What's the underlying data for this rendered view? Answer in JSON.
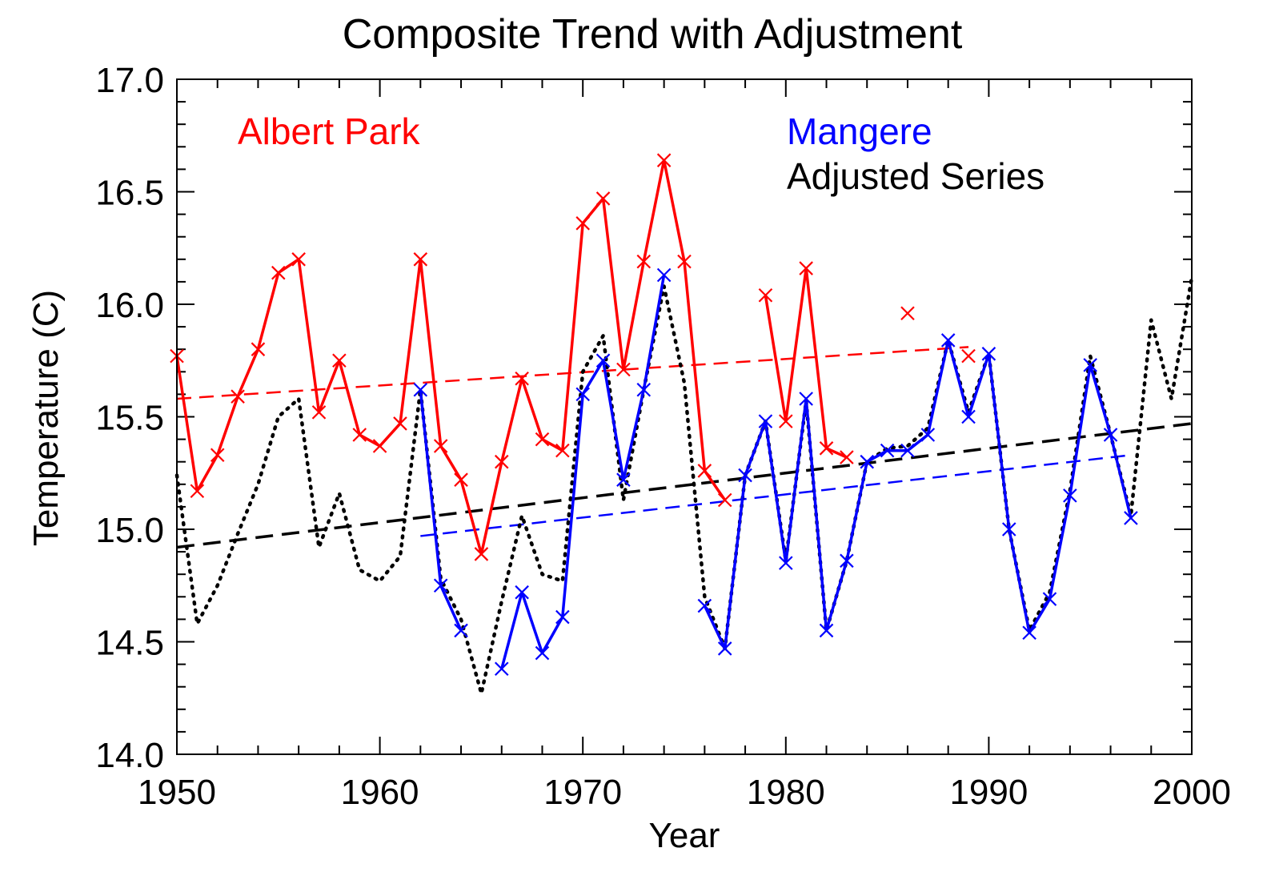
{
  "chart_data": {
    "type": "line",
    "title": "Composite Trend with Adjustment",
    "xlabel": "Year",
    "ylabel": "Temperature (C)",
    "xlim": [
      1950,
      2000
    ],
    "ylim": [
      14.0,
      17.0
    ],
    "xticks": [
      "1950",
      "1960",
      "1970",
      "1980",
      "1990",
      "2000"
    ],
    "yticks": [
      "14.0",
      "14.5",
      "15.0",
      "15.5",
      "16.0",
      "16.5",
      "17.0"
    ],
    "grid": false,
    "legend_entries": [
      {
        "label": "Albert Park",
        "color": "#ff0000"
      },
      {
        "label": "Mangere",
        "color": "#0000ff"
      },
      {
        "label": "Adjusted Series",
        "color": "#000000"
      }
    ],
    "series": [
      {
        "name": "Albert Park",
        "color": "#ff0000",
        "style": "solid",
        "marker": "x",
        "segments": [
          {
            "x": [
              1950,
              1951,
              1952,
              1953,
              1954,
              1955,
              1956,
              1957,
              1958,
              1959,
              1960,
              1961,
              1962,
              1963,
              1964,
              1965,
              1966,
              1967,
              1968,
              1969,
              1970,
              1971,
              1972,
              1973,
              1974,
              1975,
              1976,
              1977
            ],
            "y": [
              15.77,
              15.17,
              15.33,
              15.59,
              15.8,
              16.14,
              16.2,
              15.52,
              15.75,
              15.42,
              15.37,
              15.47,
              16.2,
              15.37,
              15.22,
              14.89,
              15.3,
              15.67,
              15.4,
              15.35,
              16.36,
              16.47,
              15.71,
              16.19,
              16.64,
              16.19,
              15.26,
              15.13
            ]
          },
          {
            "x": [
              1979,
              1980,
              1981,
              1982,
              1983
            ],
            "y": [
              16.04,
              15.48,
              16.16,
              15.36,
              15.32
            ]
          }
        ],
        "isolated": [
          {
            "x": 1986,
            "y": 15.96
          },
          {
            "x": 1989,
            "y": 15.77
          }
        ]
      },
      {
        "name": "Mangere",
        "color": "#0000ff",
        "style": "solid",
        "marker": "x",
        "segments": [
          {
            "x": [
              1962,
              1963,
              1964
            ],
            "y": [
              15.62,
              14.75,
              14.55
            ]
          },
          {
            "x": [
              1966,
              1967,
              1968,
              1969,
              1970,
              1971,
              1972,
              1973,
              1974
            ],
            "y": [
              14.38,
              14.72,
              14.45,
              14.61,
              15.6,
              15.75,
              15.22,
              15.62,
              16.13
            ]
          },
          {
            "x": [
              1976,
              1977,
              1978,
              1979,
              1980,
              1981,
              1982,
              1983,
              1984,
              1985,
              1986,
              1987,
              1988,
              1989,
              1990,
              1991,
              1992,
              1993,
              1994,
              1995,
              1996,
              1997
            ],
            "y": [
              14.66,
              14.47,
              15.24,
              15.48,
              14.85,
              15.58,
              14.55,
              14.86,
              15.3,
              15.35,
              15.35,
              15.42,
              15.84,
              15.5,
              15.78,
              15.0,
              14.54,
              14.69,
              15.15,
              15.73,
              15.42,
              15.05
            ]
          }
        ]
      },
      {
        "name": "Adjusted Series",
        "color": "#000000",
        "style": "dotted",
        "marker": "none",
        "segments": [
          {
            "x": [
              1950,
              1951,
              1952,
              1953,
              1954,
              1955,
              1956,
              1957,
              1958,
              1959,
              1960,
              1961,
              1962,
              1963,
              1964,
              1965,
              1966,
              1967,
              1968,
              1969,
              1970,
              1971,
              1972,
              1973,
              1974,
              1975,
              1976,
              1977,
              1978,
              1979,
              1980,
              1981,
              1982,
              1983,
              1984,
              1985,
              1986,
              1987,
              1988,
              1989,
              1990,
              1991,
              1992,
              1993,
              1994,
              1995,
              1996,
              1997,
              1998,
              1999,
              2000
            ],
            "y": [
              15.24,
              14.58,
              14.75,
              14.98,
              15.2,
              15.5,
              15.58,
              14.92,
              15.16,
              14.82,
              14.77,
              14.88,
              15.62,
              14.78,
              14.6,
              14.27,
              14.68,
              15.06,
              14.8,
              14.77,
              15.7,
              15.86,
              15.13,
              15.62,
              16.08,
              15.65,
              14.7,
              14.47,
              15.24,
              15.48,
              14.86,
              15.57,
              14.55,
              14.86,
              15.3,
              15.36,
              15.37,
              15.45,
              15.84,
              15.52,
              15.78,
              15.0,
              14.55,
              14.72,
              15.17,
              15.77,
              15.42,
              15.06,
              15.93,
              15.58,
              16.12
            ]
          }
        ]
      }
    ],
    "trend_lines": [
      {
        "name": "Albert Park trend",
        "color": "#ff0000",
        "x": [
          1950,
          1989
        ],
        "y": [
          15.58,
          15.81
        ]
      },
      {
        "name": "Mangere trend",
        "color": "#0000ff",
        "x": [
          1962,
          1997
        ],
        "y": [
          14.97,
          15.33
        ]
      },
      {
        "name": "Adjusted Series trend",
        "color": "#000000",
        "x": [
          1950,
          2000
        ],
        "y": [
          14.92,
          15.47
        ]
      }
    ]
  }
}
